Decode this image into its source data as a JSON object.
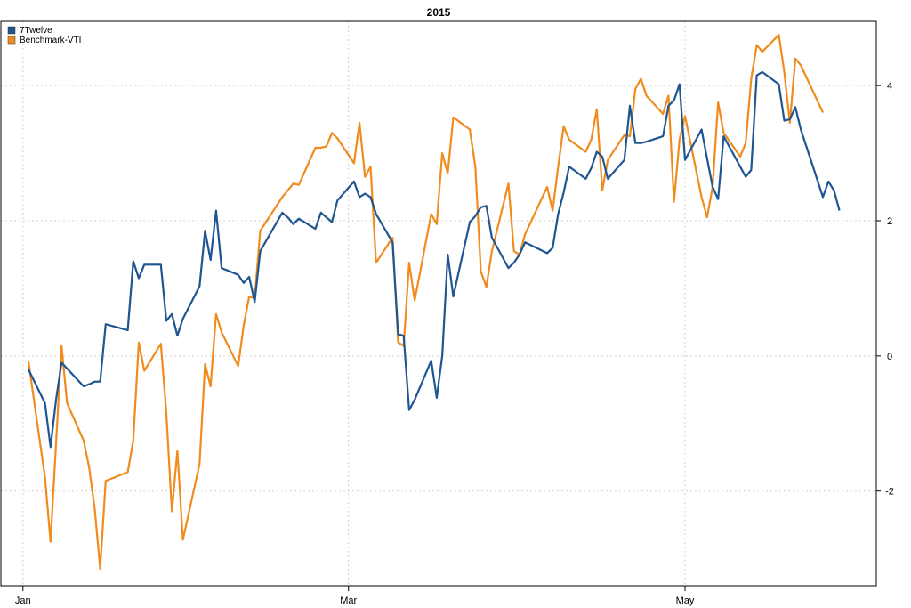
{
  "chart_data": {
    "type": "line",
    "title": "2015",
    "xlabel": "",
    "ylabel": "",
    "x_ticks": [
      "Jan",
      "Mar",
      "May"
    ],
    "y_ticks": [
      -2,
      0,
      2,
      4
    ],
    "ylim": [
      -3.4,
      4.95
    ],
    "grid": true,
    "legend": "top-left",
    "series": [
      {
        "name": "7Twelve",
        "color": "#1f5591",
        "points": [
          [
            "2015-01-02",
            -0.2
          ],
          [
            "2015-01-05",
            -0.7
          ],
          [
            "2015-01-06",
            -1.35
          ],
          [
            "2015-01-07",
            -0.65
          ],
          [
            "2015-01-08",
            -0.1
          ],
          [
            "2015-01-12",
            -0.45
          ],
          [
            "2015-01-13",
            -0.42
          ],
          [
            "2015-01-14",
            -0.38
          ],
          [
            "2015-01-15",
            -0.38
          ],
          [
            "2015-01-16",
            0.47
          ],
          [
            "2015-01-20",
            0.38
          ],
          [
            "2015-01-21",
            1.4
          ],
          [
            "2015-01-22",
            1.15
          ],
          [
            "2015-01-23",
            1.35
          ],
          [
            "2015-01-26",
            1.35
          ],
          [
            "2015-01-27",
            0.52
          ],
          [
            "2015-01-28",
            0.62
          ],
          [
            "2015-01-29",
            0.3
          ],
          [
            "2015-01-30",
            0.55
          ],
          [
            "2015-02-02",
            1.03
          ],
          [
            "2015-02-03",
            1.85
          ],
          [
            "2015-02-04",
            1.42
          ],
          [
            "2015-02-05",
            2.15
          ],
          [
            "2015-02-06",
            1.3
          ],
          [
            "2015-02-09",
            1.2
          ],
          [
            "2015-02-10",
            1.08
          ],
          [
            "2015-02-11",
            1.17
          ],
          [
            "2015-02-12",
            0.8
          ],
          [
            "2015-02-13",
            1.55
          ],
          [
            "2015-02-17",
            2.12
          ],
          [
            "2015-02-18",
            2.05
          ],
          [
            "2015-02-19",
            1.95
          ],
          [
            "2015-02-20",
            2.03
          ],
          [
            "2015-02-23",
            1.88
          ],
          [
            "2015-02-24",
            2.12
          ],
          [
            "2015-02-25",
            2.05
          ],
          [
            "2015-02-26",
            1.98
          ],
          [
            "2015-02-27",
            2.3
          ],
          [
            "2015-03-02",
            2.58
          ],
          [
            "2015-03-03",
            2.35
          ],
          [
            "2015-03-04",
            2.4
          ],
          [
            "2015-03-05",
            2.35
          ],
          [
            "2015-03-06",
            2.1
          ],
          [
            "2015-03-09",
            1.68
          ],
          [
            "2015-03-10",
            0.32
          ],
          [
            "2015-03-11",
            0.3
          ],
          [
            "2015-03-12",
            -0.8
          ],
          [
            "2015-03-13",
            -0.65
          ],
          [
            "2015-03-16",
            -0.07
          ],
          [
            "2015-03-17",
            -0.62
          ],
          [
            "2015-03-18",
            0.0
          ],
          [
            "2015-03-19",
            1.5
          ],
          [
            "2015-03-20",
            0.88
          ],
          [
            "2015-03-23",
            1.98
          ],
          [
            "2015-03-24",
            2.07
          ],
          [
            "2015-03-25",
            2.2
          ],
          [
            "2015-03-26",
            2.22
          ],
          [
            "2015-03-27",
            1.75
          ],
          [
            "2015-03-30",
            1.3
          ],
          [
            "2015-03-31",
            1.38
          ],
          [
            "2015-04-01",
            1.5
          ],
          [
            "2015-04-02",
            1.68
          ],
          [
            "2015-04-06",
            1.52
          ],
          [
            "2015-04-07",
            1.6
          ],
          [
            "2015-04-08",
            2.1
          ],
          [
            "2015-04-09",
            2.42
          ],
          [
            "2015-04-10",
            2.8
          ],
          [
            "2015-04-13",
            2.62
          ],
          [
            "2015-04-14",
            2.78
          ],
          [
            "2015-04-15",
            3.02
          ],
          [
            "2015-04-16",
            2.95
          ],
          [
            "2015-04-17",
            2.62
          ],
          [
            "2015-04-20",
            2.9
          ],
          [
            "2015-04-21",
            3.7
          ],
          [
            "2015-04-22",
            3.15
          ],
          [
            "2015-04-23",
            3.15
          ],
          [
            "2015-04-24",
            3.17
          ],
          [
            "2015-04-27",
            3.25
          ],
          [
            "2015-04-28",
            3.7
          ],
          [
            "2015-04-29",
            3.78
          ],
          [
            "2015-04-30",
            4.02
          ],
          [
            "2015-05-01",
            2.9
          ],
          [
            "2015-05-04",
            3.35
          ],
          [
            "2015-05-05",
            2.92
          ],
          [
            "2015-05-06",
            2.5
          ],
          [
            "2015-05-07",
            2.32
          ],
          [
            "2015-05-08",
            3.25
          ],
          [
            "2015-05-11",
            2.8
          ],
          [
            "2015-05-12",
            2.65
          ],
          [
            "2015-05-13",
            2.75
          ],
          [
            "2015-05-14",
            4.15
          ],
          [
            "2015-05-15",
            4.2
          ],
          [
            "2015-05-18",
            4.02
          ],
          [
            "2015-05-19",
            3.48
          ],
          [
            "2015-05-20",
            3.5
          ],
          [
            "2015-05-21",
            3.68
          ],
          [
            "2015-05-22",
            3.35
          ],
          [
            "2015-05-26",
            2.35
          ],
          [
            "2015-05-27",
            2.58
          ],
          [
            "2015-05-28",
            2.45
          ],
          [
            "2015-05-29",
            2.15
          ]
        ]
      },
      {
        "name": "Benchmark-VTI",
        "color": "#f08c1e",
        "points": [
          [
            "2015-01-02",
            -0.08
          ],
          [
            "2015-01-05",
            -1.8
          ],
          [
            "2015-01-06",
            -2.75
          ],
          [
            "2015-01-07",
            -1.3
          ],
          [
            "2015-01-08",
            0.15
          ],
          [
            "2015-01-09",
            -0.7
          ],
          [
            "2015-01-12",
            -1.25
          ],
          [
            "2015-01-13",
            -1.65
          ],
          [
            "2015-01-14",
            -2.25
          ],
          [
            "2015-01-15",
            -3.15
          ],
          [
            "2015-01-16",
            -1.85
          ],
          [
            "2015-01-20",
            -1.72
          ],
          [
            "2015-01-21",
            -1.25
          ],
          [
            "2015-01-22",
            0.2
          ],
          [
            "2015-01-23",
            -0.22
          ],
          [
            "2015-01-26",
            0.18
          ],
          [
            "2015-01-27",
            -0.85
          ],
          [
            "2015-01-28",
            -2.3
          ],
          [
            "2015-01-29",
            -1.4
          ],
          [
            "2015-01-30",
            -2.72
          ],
          [
            "2015-02-02",
            -1.6
          ],
          [
            "2015-02-03",
            -0.12
          ],
          [
            "2015-02-04",
            -0.45
          ],
          [
            "2015-02-05",
            0.62
          ],
          [
            "2015-02-06",
            0.35
          ],
          [
            "2015-02-09",
            -0.15
          ],
          [
            "2015-02-10",
            0.45
          ],
          [
            "2015-02-11",
            0.88
          ],
          [
            "2015-02-12",
            0.85
          ],
          [
            "2015-02-13",
            1.85
          ],
          [
            "2015-02-17",
            2.35
          ],
          [
            "2015-02-18",
            2.45
          ],
          [
            "2015-02-19",
            2.55
          ],
          [
            "2015-02-20",
            2.53
          ],
          [
            "2015-02-23",
            3.08
          ],
          [
            "2015-02-24",
            3.08
          ],
          [
            "2015-02-25",
            3.1
          ],
          [
            "2015-02-26",
            3.3
          ],
          [
            "2015-02-27",
            3.22
          ],
          [
            "2015-03-02",
            2.85
          ],
          [
            "2015-03-03",
            3.45
          ],
          [
            "2015-03-04",
            2.65
          ],
          [
            "2015-03-05",
            2.8
          ],
          [
            "2015-03-06",
            1.38
          ],
          [
            "2015-03-09",
            1.75
          ],
          [
            "2015-03-10",
            0.2
          ],
          [
            "2015-03-11",
            0.15
          ],
          [
            "2015-03-12",
            1.38
          ],
          [
            "2015-03-13",
            0.82
          ],
          [
            "2015-03-16",
            2.1
          ],
          [
            "2015-03-17",
            1.95
          ],
          [
            "2015-03-18",
            3.0
          ],
          [
            "2015-03-19",
            2.7
          ],
          [
            "2015-03-20",
            3.53
          ],
          [
            "2015-03-23",
            3.35
          ],
          [
            "2015-03-24",
            2.8
          ],
          [
            "2015-03-25",
            1.25
          ],
          [
            "2015-03-26",
            1.02
          ],
          [
            "2015-03-27",
            1.55
          ],
          [
            "2015-03-30",
            2.55
          ],
          [
            "2015-03-31",
            1.55
          ],
          [
            "2015-04-01",
            1.5
          ],
          [
            "2015-04-02",
            1.8
          ],
          [
            "2015-04-06",
            2.5
          ],
          [
            "2015-04-07",
            2.15
          ],
          [
            "2015-04-08",
            2.8
          ],
          [
            "2015-04-09",
            3.4
          ],
          [
            "2015-04-10",
            3.2
          ],
          [
            "2015-04-13",
            3.02
          ],
          [
            "2015-04-14",
            3.2
          ],
          [
            "2015-04-15",
            3.65
          ],
          [
            "2015-04-16",
            2.45
          ],
          [
            "2015-04-17",
            2.9
          ],
          [
            "2015-04-20",
            3.27
          ],
          [
            "2015-04-21",
            3.25
          ],
          [
            "2015-04-22",
            3.95
          ],
          [
            "2015-04-23",
            4.1
          ],
          [
            "2015-04-24",
            3.85
          ],
          [
            "2015-04-27",
            3.58
          ],
          [
            "2015-04-28",
            3.85
          ],
          [
            "2015-04-29",
            2.28
          ],
          [
            "2015-04-30",
            3.2
          ],
          [
            "2015-05-01",
            3.55
          ],
          [
            "2015-05-04",
            2.35
          ],
          [
            "2015-05-05",
            2.05
          ],
          [
            "2015-05-06",
            2.5
          ],
          [
            "2015-05-07",
            3.75
          ],
          [
            "2015-05-08",
            3.3
          ],
          [
            "2015-05-11",
            2.95
          ],
          [
            "2015-05-12",
            3.15
          ],
          [
            "2015-05-13",
            4.1
          ],
          [
            "2015-05-14",
            4.6
          ],
          [
            "2015-05-15",
            4.5
          ],
          [
            "2015-05-18",
            4.75
          ],
          [
            "2015-05-19",
            4.2
          ],
          [
            "2015-05-20",
            3.45
          ],
          [
            "2015-05-21",
            4.4
          ],
          [
            "2015-05-22",
            4.3
          ],
          [
            "2015-05-26",
            3.6
          ]
        ]
      }
    ]
  }
}
